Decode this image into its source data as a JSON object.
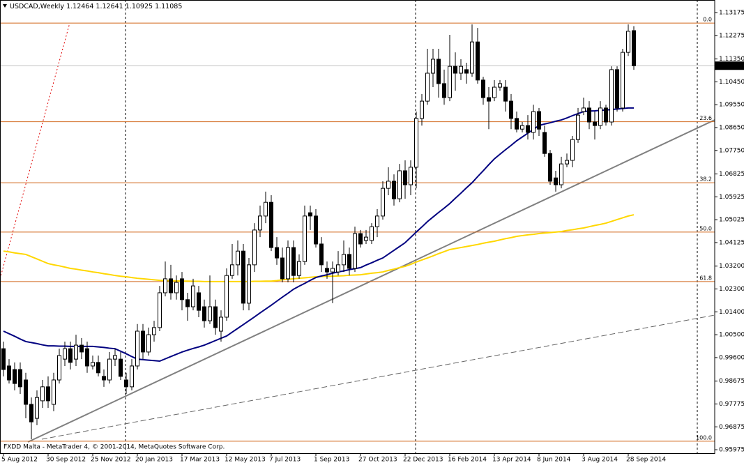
{
  "chart_data": {
    "type": "candlestick",
    "symbol": "USDCAD,Weekly",
    "footer": "FXDD Malta - MetaTrader 4, © 2001-2014, MetaQuotes Software Corp.",
    "categories": [
      "5 Aug 2012",
      null,
      null,
      null,
      null,
      null,
      null,
      null,
      "30 Sep 2012",
      null,
      null,
      null,
      null,
      null,
      null,
      null,
      "25 Nov 2012",
      null,
      null,
      null,
      null,
      null,
      null,
      null,
      "20 Jan 2013",
      null,
      null,
      null,
      null,
      null,
      null,
      null,
      "17 Mar 2013",
      null,
      null,
      null,
      null,
      null,
      null,
      null,
      "12 May 2013",
      null,
      null,
      null,
      null,
      null,
      null,
      null,
      "7 Jul 2013",
      null,
      null,
      null,
      null,
      null,
      null,
      null,
      "1 Sep 2013",
      null,
      null,
      null,
      null,
      null,
      null,
      null,
      "27 Oct 2013",
      null,
      null,
      null,
      null,
      null,
      null,
      null,
      "22 Dec 2013",
      null,
      null,
      null,
      null,
      null,
      null,
      null,
      "16 Feb 2014",
      null,
      null,
      null,
      null,
      null,
      null,
      null,
      "13 Apr 2014",
      null,
      null,
      null,
      null,
      null,
      null,
      null,
      "8 Jun 2014",
      null,
      null,
      null,
      null,
      null,
      null,
      null,
      "3 Aug 2014",
      null,
      null,
      null,
      null,
      null,
      null,
      null,
      "28 Sep 2014",
      null
    ],
    "open": [
      0.9995,
      0.9927,
      0.9913,
      0.9913,
      0.9872,
      0.9776,
      0.9721,
      0.979,
      0.9845,
      0.9776,
      0.9872,
      0.9954,
      0.9995,
      0.9954,
      1.0009,
      0.9995,
      0.9927,
      0.9941,
      0.9886,
      0.9872,
      0.9954,
      0.9954,
      0.9872,
      0.9845,
      0.9927,
      1.0064,
      0.9982,
      1.005,
      1.0078,
      1.0215,
      1.027,
      1.0215,
      1.027,
      1.0188,
      1.016,
      1.0215,
      1.016,
      1.0105,
      1.016,
      1.0064,
      1.0119,
      1.0283,
      1.0325,
      1.0379,
      1.0174,
      1.0325,
      1.0462,
      1.0517,
      1.0571,
      1.0393,
      1.0352,
      1.027,
      1.0393,
      1.0283,
      1.0338,
      1.053,
      1.0517,
      1.0407,
      1.0311,
      1.0297,
      1.0297,
      1.0325,
      1.0366,
      1.0311,
      1.0448,
      1.0421,
      1.0421,
      1.0475,
      1.0517,
      1.0626,
      1.0654,
      1.0585,
      1.0695,
      1.064,
      1.0709,
      1.0901,
      1.0969,
      1.1079,
      1.1134,
      1.1038,
      1.0983,
      1.1106,
      1.1079,
      1.1093,
      1.1079,
      1.1202,
      1.1052,
      1.0983,
      1.0983,
      1.1024,
      1.1024,
      1.0969,
      1.0901,
      1.0859,
      1.0873,
      1.0846,
      1.0928,
      1.0846,
      1.0763,
      1.0667,
      1.064,
      1.0722,
      1.0736,
      1.0818,
      1.0928,
      1.0942,
      1.0887,
      1.0873,
      1.0942,
      1.0887,
      1.1093,
      1.0942,
      1.1161,
      1.12464
    ],
    "high": [
      1.0023,
      0.9954,
      0.9941,
      0.9941,
      0.99,
      0.9803,
      0.9831,
      0.9872,
      0.9886,
      0.99,
      0.9995,
      1.0023,
      1.0023,
      1.005,
      1.0037,
      1.0023,
      0.9968,
      0.9968,
      0.9913,
      0.9982,
      0.9995,
      0.9982,
      0.99,
      0.9954,
      1.0092,
      1.0092,
      1.0078,
      1.0105,
      1.0242,
      1.0338,
      1.0325,
      1.0283,
      1.0297,
      1.0215,
      1.027,
      1.0242,
      1.0188,
      1.0283,
      1.0188,
      1.0146,
      1.0311,
      1.0407,
      1.0421,
      1.0407,
      1.0352,
      1.0489,
      1.0558,
      1.0613,
      1.0599,
      1.0434,
      1.0393,
      1.0421,
      1.0421,
      1.0366,
      1.0558,
      1.0558,
      1.0544,
      1.0434,
      1.0338,
      1.0338,
      1.0379,
      1.0421,
      1.0393,
      1.0475,
      1.0462,
      1.0462,
      1.0489,
      1.0544,
      1.0654,
      1.0709,
      1.0681,
      1.0722,
      1.0736,
      1.0736,
      1.0928,
      1.0997,
      1.1175,
      1.1175,
      1.1175,
      1.1093,
      1.123,
      1.1161,
      1.1134,
      1.112,
      1.1271,
      1.1257,
      1.1065,
      1.1024,
      1.1052,
      1.1052,
      1.1052,
      1.0997,
      1.0928,
      1.0887,
      1.0914,
      1.0955,
      1.0942,
      1.0873,
      1.0777,
      1.0695,
      1.075,
      1.0763,
      1.0832,
      1.0942,
      1.0983,
      1.0969,
      1.0928,
      1.0969,
      1.0955,
      1.1106,
      1.1106,
      1.1175,
      1.1271,
      1.12641
    ],
    "low": [
      0.9886,
      0.9858,
      0.9831,
      0.9817,
      0.9721,
      0.9639,
      0.9694,
      0.9762,
      0.9762,
      0.9749,
      0.9858,
      0.9927,
      0.9913,
      0.9927,
      0.9954,
      0.99,
      0.9913,
      0.9886,
      0.9845,
      0.9858,
      0.9927,
      0.9872,
      0.9817,
      0.9831,
      0.9913,
      0.9954,
      0.9968,
      1.0023,
      1.0064,
      1.0201,
      1.0188,
      1.0188,
      1.0146,
      1.0105,
      1.0146,
      1.0119,
      1.0078,
      1.0092,
      1.005,
      1.0023,
      1.0105,
      1.027,
      1.0283,
      1.0146,
      1.0146,
      1.0297,
      1.0434,
      1.0489,
      1.0379,
      1.0325,
      1.0256,
      1.0256,
      1.0256,
      1.027,
      1.0325,
      1.0462,
      1.0393,
      1.0297,
      1.027,
      1.0174,
      1.0283,
      1.0297,
      1.0283,
      1.0297,
      1.0393,
      1.0407,
      1.0407,
      1.0434,
      1.0503,
      1.0599,
      1.0558,
      1.0571,
      1.0585,
      1.0599,
      1.0626,
      1.0873,
      1.0955,
      1.1024,
      1.0983,
      1.0955,
      1.0969,
      1.101,
      1.1052,
      1.1038,
      1.1065,
      1.1038,
      1.0955,
      1.0859,
      1.0969,
      1.101,
      1.0928,
      1.0859,
      1.0846,
      1.0846,
      1.0818,
      1.0818,
      1.0832,
      1.075,
      1.064,
      1.0613,
      1.0626,
      1.0709,
      1.0709,
      1.0805,
      1.0914,
      1.0859,
      1.0818,
      1.0859,
      1.0873,
      1.0873,
      1.0928,
      1.0928,
      1.1147,
      1.10925
    ],
    "close": [
      0.9913,
      0.9872,
      0.9858,
      0.9845,
      0.9776,
      0.9707,
      0.9803,
      0.9845,
      0.979,
      0.9872,
      0.9968,
      0.9995,
      0.9941,
      1.0009,
      0.9982,
      0.9927,
      0.9941,
      0.99,
      0.9872,
      0.9954,
      0.9968,
      0.9886,
      0.9845,
      0.9927,
      1.0064,
      0.9982,
      1.005,
      1.0078,
      1.0215,
      1.027,
      1.0215,
      1.0256,
      1.0188,
      1.016,
      1.0242,
      1.0146,
      1.0105,
      1.016,
      1.0078,
      1.0119,
      1.0283,
      1.0325,
      1.0379,
      1.0174,
      1.0325,
      1.0462,
      1.0517,
      1.0571,
      1.0393,
      1.0352,
      1.027,
      1.0393,
      1.0283,
      1.0338,
      1.0517,
      1.0517,
      1.0407,
      1.0325,
      1.0297,
      1.0311,
      1.0325,
      1.0366,
      1.0311,
      1.0448,
      1.0407,
      1.0434,
      1.0475,
      1.0517,
      1.0626,
      1.0654,
      1.0585,
      1.0695,
      1.064,
      1.0709,
      1.0901,
      1.0969,
      1.1079,
      1.1134,
      1.1038,
      1.0983,
      1.1106,
      1.1079,
      1.1106,
      1.1079,
      1.1202,
      1.1052,
      1.0983,
      1.0969,
      1.1024,
      1.1038,
      1.0969,
      1.0901,
      1.0859,
      1.0873,
      1.0846,
      1.0928,
      1.0859,
      1.0763,
      1.0654,
      1.064,
      1.0722,
      1.0736,
      1.0818,
      1.0914,
      1.0942,
      1.0887,
      1.0873,
      1.0942,
      1.0887,
      1.1093,
      1.0942,
      1.1161,
      1.1244,
      1.11085
    ],
    "bull_color": "#ffffff",
    "bear_color": "#000000",
    "moving_averages": [
      {
        "color": "#ffd700",
        "values": [
          1.0379,
          1.0376,
          1.0372,
          1.0369,
          1.0366,
          1.0357,
          1.0348,
          1.0339,
          1.033,
          1.0325,
          1.0321,
          1.0316,
          1.0311,
          1.0308,
          1.0304,
          1.0301,
          1.0297,
          1.0294,
          1.029,
          1.0287,
          1.0283,
          1.028,
          1.0278,
          1.0275,
          1.0272,
          1.027,
          1.0268,
          1.0266,
          1.0264,
          1.0263,
          1.0263,
          1.0262,
          1.0261,
          1.0261,
          1.026,
          1.026,
          1.0259,
          1.0259,
          1.0259,
          1.0259,
          1.0259,
          1.0259,
          1.0259,
          1.0259,
          1.0259,
          1.026,
          1.026,
          1.0261,
          1.0261,
          1.0263,
          1.0266,
          1.0268,
          1.027,
          1.0272,
          1.0274,
          1.0276,
          1.0278,
          1.0279,
          1.028,
          1.028,
          1.0281,
          1.0282,
          1.0284,
          1.0285,
          1.0286,
          1.0289,
          1.0292,
          1.0294,
          1.0297,
          1.0303,
          1.0308,
          1.0314,
          1.0319,
          1.0327,
          1.0336,
          1.0344,
          1.0352,
          1.036,
          1.0369,
          1.0377,
          1.0385,
          1.0389,
          1.0393,
          1.0397,
          1.0401,
          1.0405,
          1.041,
          1.0414,
          1.0418,
          1.0423,
          1.0428,
          1.0432,
          1.0437,
          1.044,
          1.0443,
          1.0445,
          1.0448,
          1.045,
          1.0452,
          1.0454,
          1.0456,
          1.046,
          1.0463,
          1.0467,
          1.047,
          1.0475,
          1.048,
          1.0484,
          1.0489,
          1.0496,
          1.0503,
          1.051,
          1.0517,
          1.0522
        ]
      },
      {
        "color": "#000080",
        "values": [
          1.0064,
          1.0054,
          1.0044,
          1.0033,
          1.0023,
          1.0019,
          1.0015,
          1.001,
          1.0006,
          1.0006,
          1.0005,
          1.0005,
          1.0004,
          1.0004,
          1.0004,
          1.0004,
          1.0004,
          1.0002,
          1.0,
          0.9997,
          0.9995,
          0.9985,
          0.9975,
          0.9964,
          0.9954,
          0.9952,
          0.995,
          0.9948,
          0.9946,
          0.9955,
          0.9964,
          0.9973,
          0.9982,
          0.9989,
          0.9996,
          1.0002,
          1.0009,
          1.0018,
          1.0027,
          1.0036,
          1.0045,
          1.006,
          1.0075,
          1.009,
          1.0105,
          1.012,
          1.0136,
          1.0151,
          1.0166,
          1.0182,
          1.0198,
          1.0213,
          1.0229,
          1.0241,
          1.0252,
          1.0264,
          1.0275,
          1.0281,
          1.0286,
          1.0292,
          1.0297,
          1.0301,
          1.0306,
          1.031,
          1.0314,
          1.0324,
          1.0333,
          1.0343,
          1.0352,
          1.0367,
          1.0382,
          1.0397,
          1.0412,
          1.0433,
          1.0454,
          1.0474,
          1.0495,
          1.0513,
          1.0531,
          1.0548,
          1.0566,
          1.0587,
          1.0607,
          1.0628,
          1.0648,
          1.0672,
          1.0695,
          1.0719,
          1.0742,
          1.076,
          1.0778,
          1.0795,
          1.0813,
          1.0828,
          1.0843,
          1.0858,
          1.0873,
          1.0879,
          1.0884,
          1.089,
          1.0895,
          1.0903,
          1.0912,
          1.092,
          1.0928,
          1.093,
          1.0931,
          1.0933,
          1.0934,
          1.0936,
          1.0938,
          1.094,
          1.0942,
          1.0942
        ]
      }
    ],
    "fibonacci": {
      "color": "#d2691e",
      "levels": [
        {
          "label": "0.0",
          "value": 1.1276
        },
        {
          "label": "23.6",
          "value": 1.0888
        },
        {
          "label": "38.2",
          "value": 1.0648
        },
        {
          "label": "50.0",
          "value": 1.0454
        },
        {
          "label": "61.8",
          "value": 1.0259
        },
        {
          "label": "100.0",
          "value": 0.9631
        }
      ]
    },
    "ylim": [
      0.9584,
      1.1367
    ],
    "yticks": [
      1.13175,
      1.12275,
      {
        "value": 1.1135,
        "label": "1.11350"
      },
      {
        "value": 1.1045,
        "label": "1.10450"
      },
      {
        "value": 1.0955,
        "label": "1.09550"
      },
      {
        "value": 1.0865,
        "label": "1.08650"
      },
      {
        "value": 1.0775,
        "label": "1.07750"
      },
      1.06825,
      1.05925,
      1.05025,
      1.04125,
      {
        "value": 1.032,
        "label": "1.03200"
      },
      {
        "value": 1.023,
        "label": "1.02300"
      },
      {
        "value": 1.014,
        "label": "1.01400"
      },
      {
        "value": 1.005,
        "label": "1.00500"
      },
      {
        "value": 0.996,
        "label": "0.99600"
      },
      0.98675,
      0.97775,
      0.96875,
      0.95975
    ]
  }
}
